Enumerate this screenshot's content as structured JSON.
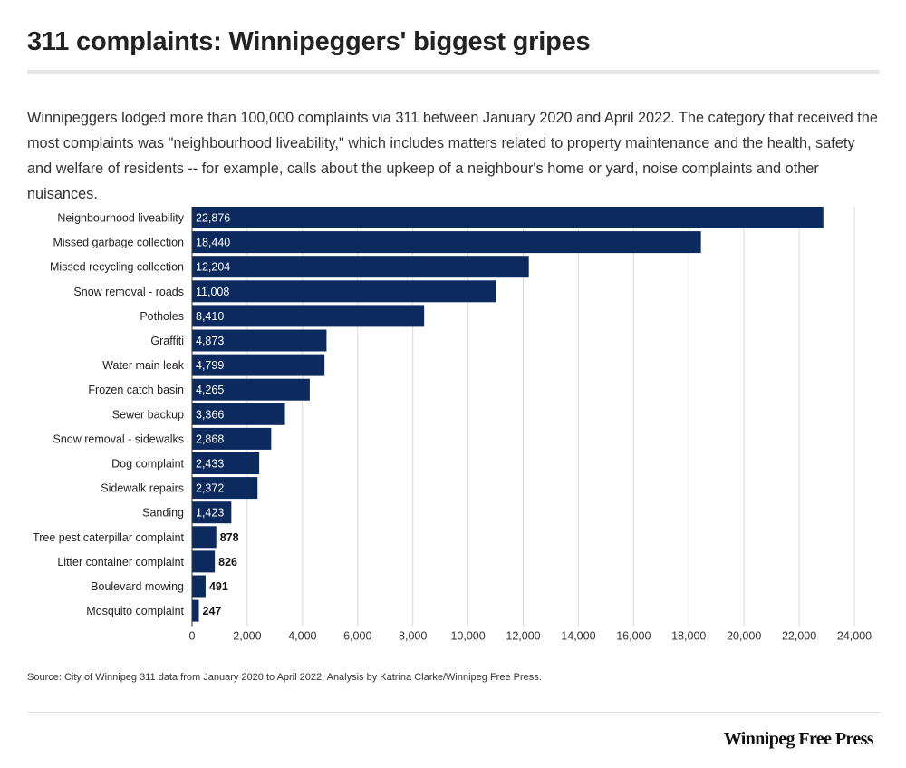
{
  "header": {
    "title": "311 complaints: Winnipeggers' biggest gripes",
    "subtitle": "Winnipeggers lodged more than 100,000 complaints via 311 between January 2020 and April 2022.  The category that received the most complaints was \"neighbourhood liveability,\" which includes matters related to property maintenance and the health, safety and welfare of residents -- for example, calls about the upkeep of a neighbour's home or yard, noise complaints and other nuisances."
  },
  "chart_data": {
    "type": "bar",
    "orientation": "horizontal",
    "categories": [
      "Neighbourhood liveability",
      "Missed garbage collection",
      "Missed recycling collection",
      "Snow removal - roads",
      "Potholes",
      "Graffiti",
      "Water main leak",
      "Frozen catch basin",
      "Sewer backup",
      "Snow removal - sidewalks",
      "Dog complaint",
      "Sidewalk repairs",
      "Sanding",
      "Tree pest caterpillar complaint",
      "Litter container complaint",
      "Boulevard mowing",
      "Mosquito complaint"
    ],
    "values": [
      22876,
      18440,
      12204,
      11008,
      8410,
      4873,
      4799,
      4265,
      3366,
      2868,
      2433,
      2372,
      1423,
      878,
      826,
      491,
      247
    ],
    "value_labels": [
      "22,876",
      "18,440",
      "12,204",
      "11,008",
      "8,410",
      "4,873",
      "4,799",
      "4,265",
      "3,366",
      "2,868",
      "2,433",
      "2,372",
      "1,423",
      "878",
      "826",
      "491",
      "247"
    ],
    "xlim": [
      0,
      24000
    ],
    "x_ticks": [
      0,
      2000,
      4000,
      6000,
      8000,
      10000,
      12000,
      14000,
      16000,
      18000,
      20000,
      22000,
      24000
    ],
    "x_tick_labels": [
      "0",
      "2,000",
      "4,000",
      "6,000",
      "8,000",
      "10,000",
      "12,000",
      "14,000",
      "16,000",
      "18,000",
      "20,000",
      "22,000",
      "24,000"
    ],
    "grid": true,
    "xlabel": "",
    "ylabel": "",
    "bar_color": "#0d2a5e"
  },
  "footer": {
    "source": "Source: City of Winnipeg 311 data from January 2020 to April 2022. Analysis by Katrina Clarke/Winnipeg Free Press.",
    "brand": "Winnipeg Free Press"
  }
}
